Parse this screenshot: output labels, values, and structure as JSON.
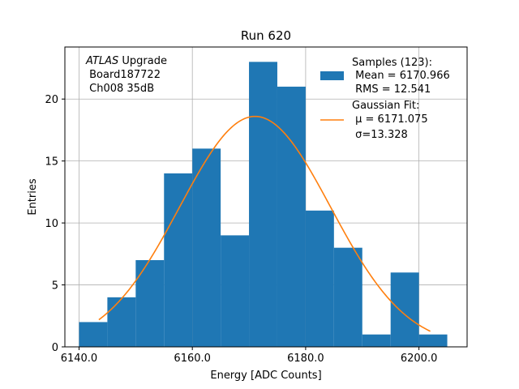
{
  "chart_data": {
    "type": "bar",
    "title": "Run 620",
    "xlabel": "Energy [ADC Counts]",
    "ylabel": "Entries",
    "xlim": [
      6137.5,
      6208.5
    ],
    "ylim": [
      0,
      24.2
    ],
    "grid": true,
    "legend_position": "top-right",
    "x_ticks": [
      6140,
      6160,
      6180,
      6200
    ],
    "x_tick_labels": [
      "6140.0",
      "6160.0",
      "6180.0",
      "6200.0"
    ],
    "y_ticks": [
      0,
      5,
      10,
      15,
      20
    ],
    "y_tick_labels": [
      "0",
      "5",
      "10",
      "15",
      "20"
    ],
    "bin_edges": [
      6140.0,
      6145.0,
      6150.0,
      6155.0,
      6160.0,
      6165.0,
      6170.0,
      6175.0,
      6180.0,
      6185.0,
      6190.0,
      6195.0,
      6200.0,
      6205.0
    ],
    "values": [
      2,
      4,
      7,
      14,
      16,
      9,
      23,
      21,
      11,
      8,
      1,
      6,
      1
    ],
    "series": [
      {
        "name": "Samples (123):",
        "kind": "histogram",
        "color": "#1f77b4"
      },
      {
        "name": "Gaussian Fit:",
        "kind": "gaussian",
        "color": "#ff7f0e",
        "mu": 6171.075,
        "sigma": 13.328,
        "amplitude": 18.6,
        "x_range": [
          6143.5,
          6202.0
        ]
      }
    ],
    "annotation": {
      "lines": [
        "ATLAS Upgrade",
        " Board187722",
        " Ch008 35dB"
      ],
      "italic_word": "ATLAS"
    },
    "legend": {
      "hist_lines": [
        "Samples (123):",
        " Mean = 6170.966",
        " RMS = 12.541"
      ],
      "fit_lines": [
        "Gaussian Fit:",
        " μ = 6171.075",
        " σ=13.328"
      ]
    }
  }
}
